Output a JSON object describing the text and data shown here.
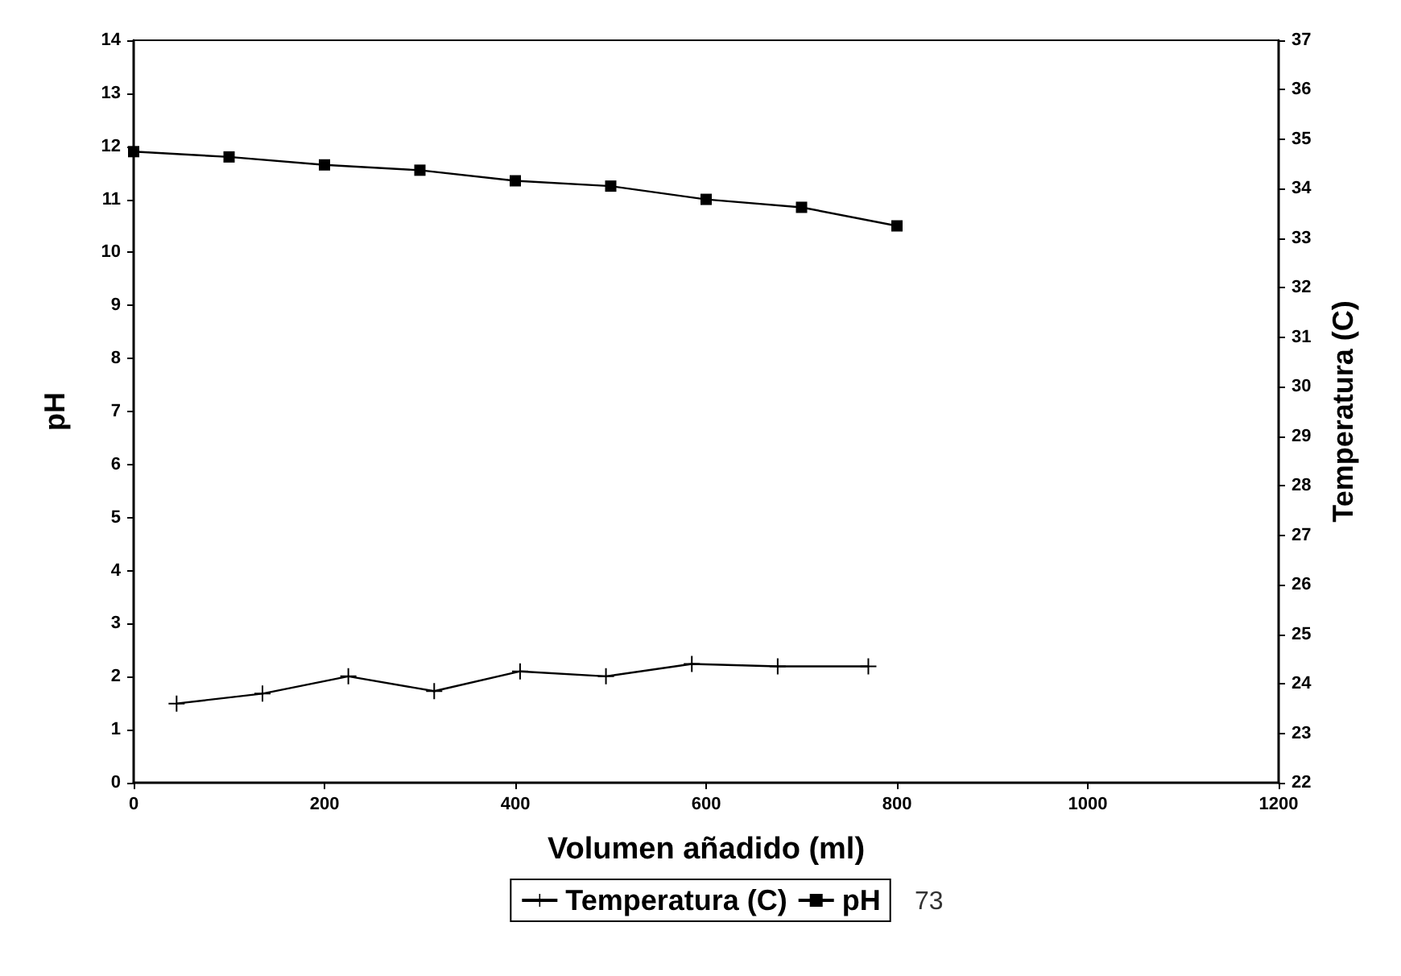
{
  "chart_data": {
    "type": "line",
    "xlabel": "Volumen añadido (ml)",
    "ylabel": "pH",
    "y2label": "Temperatura (C)",
    "xlim": [
      0,
      1200
    ],
    "xticks": [
      0,
      200,
      400,
      600,
      800,
      1000,
      1200
    ],
    "ylim": [
      0,
      14
    ],
    "yticks": [
      0,
      1,
      2,
      3,
      4,
      5,
      6,
      7,
      8,
      9,
      10,
      11,
      12,
      13,
      14
    ],
    "y2lim": [
      22,
      37
    ],
    "y2ticks": [
      22,
      23,
      24,
      25,
      26,
      27,
      28,
      29,
      30,
      31,
      32,
      33,
      34,
      35,
      36,
      37
    ],
    "grid": false,
    "legend": "bottom",
    "line_style": "solid",
    "annotations": [
      "73"
    ],
    "series": [
      {
        "name": "Temperatura (C)",
        "color": "#000000",
        "axis": "y2",
        "marker": "cross",
        "x": [
          45,
          135,
          225,
          315,
          405,
          495,
          585,
          675,
          770
        ],
        "values": [
          23.6,
          23.8,
          24.15,
          23.85,
          24.25,
          24.15,
          24.4,
          24.35,
          24.35
        ]
      },
      {
        "name": "pH",
        "color": "#000000",
        "axis": "y",
        "marker": "square",
        "x": [
          0,
          100,
          200,
          300,
          400,
          500,
          600,
          700,
          800
        ],
        "values": [
          11.9,
          11.8,
          11.65,
          11.55,
          11.35,
          11.25,
          11.0,
          10.85,
          10.5
        ]
      }
    ]
  }
}
